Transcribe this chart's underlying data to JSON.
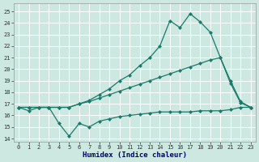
{
  "xlabel": "Humidex (Indice chaleur)",
  "background_color": "#cce8e0",
  "line_color": "#1a7a6a",
  "xlim": [
    -0.5,
    23.5
  ],
  "ylim": [
    13.7,
    25.7
  ],
  "yticks": [
    14,
    15,
    16,
    17,
    18,
    19,
    20,
    21,
    22,
    23,
    24,
    25
  ],
  "xticks": [
    0,
    1,
    2,
    3,
    4,
    5,
    6,
    7,
    8,
    9,
    10,
    11,
    12,
    13,
    14,
    15,
    16,
    17,
    18,
    19,
    20,
    21,
    22,
    23
  ],
  "series_min": [
    16.7,
    16.4,
    16.7,
    16.7,
    15.3,
    14.2,
    15.3,
    15.0,
    15.5,
    15.7,
    15.9,
    16.0,
    16.1,
    16.2,
    16.3,
    16.3,
    16.3,
    16.3,
    16.4,
    16.4,
    16.4,
    16.5,
    16.7,
    16.7
  ],
  "series_avg": [
    16.7,
    16.7,
    16.7,
    16.7,
    16.7,
    16.7,
    17.0,
    17.2,
    17.5,
    17.8,
    18.1,
    18.4,
    18.7,
    19.0,
    19.3,
    19.6,
    19.9,
    20.2,
    20.5,
    20.8,
    21.0,
    19.0,
    17.2,
    16.7
  ],
  "series_max": [
    16.7,
    16.7,
    16.7,
    16.7,
    16.7,
    16.7,
    17.0,
    17.3,
    17.8,
    18.3,
    19.0,
    19.5,
    20.3,
    21.0,
    22.0,
    24.2,
    23.6,
    24.8,
    24.1,
    23.2,
    21.0,
    18.8,
    17.1,
    16.7
  ]
}
